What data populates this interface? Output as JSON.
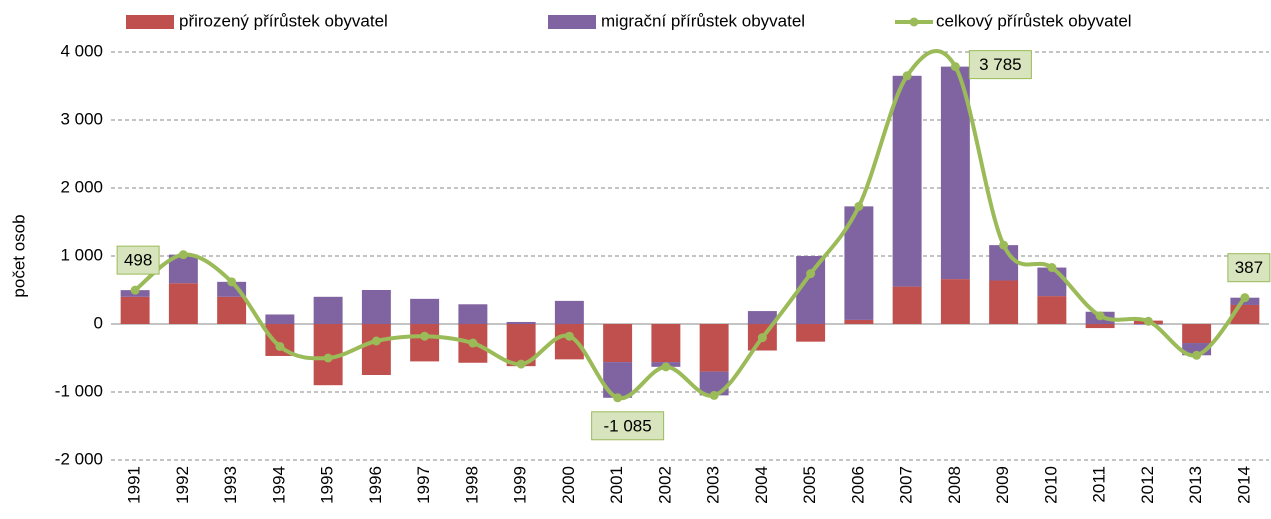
{
  "chart_data": {
    "type": "bar",
    "y_label": "počet osob",
    "categories": [
      "1991",
      "1992",
      "1993",
      "1994",
      "1995",
      "1996",
      "1997",
      "1998",
      "1999",
      "2000",
      "2001",
      "2002",
      "2003",
      "2004",
      "2005",
      "2006",
      "2007",
      "2008",
      "2009",
      "2010",
      "2011",
      "2012",
      "2013",
      "2014"
    ],
    "series": [
      {
        "name": "přirozený přírůstek obyvatel",
        "type": "bar",
        "color": "#c0504d",
        "values": [
          400,
          600,
          400,
          -470,
          -900,
          -750,
          -550,
          -570,
          -620,
          -520,
          -560,
          -560,
          -700,
          -390,
          -260,
          60,
          550,
          660,
          640,
          410,
          -60,
          50,
          -280,
          280
        ]
      },
      {
        "name": "migrační přírůstek obyvatel",
        "type": "bar",
        "color": "#8064a2",
        "values": [
          98,
          420,
          220,
          140,
          400,
          500,
          370,
          290,
          30,
          340,
          -525,
          -70,
          -350,
          190,
          1000,
          1670,
          3100,
          3125,
          520,
          420,
          180,
          -10,
          -180,
          107
        ]
      },
      {
        "name": "celkový přírůstek obyvatel",
        "type": "line",
        "color": "#9bbb59",
        "values": [
          498,
          1020,
          620,
          -330,
          -500,
          -250,
          -180,
          -280,
          -590,
          -180,
          -1085,
          -630,
          -1050,
          -200,
          740,
          1730,
          3650,
          3785,
          1160,
          830,
          120,
          40,
          -460,
          387
        ],
        "value_labels": [
          "498",
          null,
          null,
          null,
          null,
          null,
          null,
          null,
          null,
          null,
          "-1 085",
          null,
          null,
          null,
          null,
          null,
          null,
          "3 785",
          null,
          null,
          null,
          null,
          null,
          "387"
        ]
      }
    ],
    "ylim": [
      -2000,
      4000
    ],
    "yticks": [
      {
        "value": -2000,
        "label": "-2 000"
      },
      {
        "value": -1000,
        "label": "-1 000"
      },
      0,
      {
        "value": 1000,
        "label": "1 000"
      },
      {
        "value": 2000,
        "label": "2 000"
      },
      {
        "value": 3000,
        "label": "3 000"
      },
      {
        "value": 4000,
        "label": "4 000"
      }
    ],
    "grid": true,
    "legend": "top"
  }
}
